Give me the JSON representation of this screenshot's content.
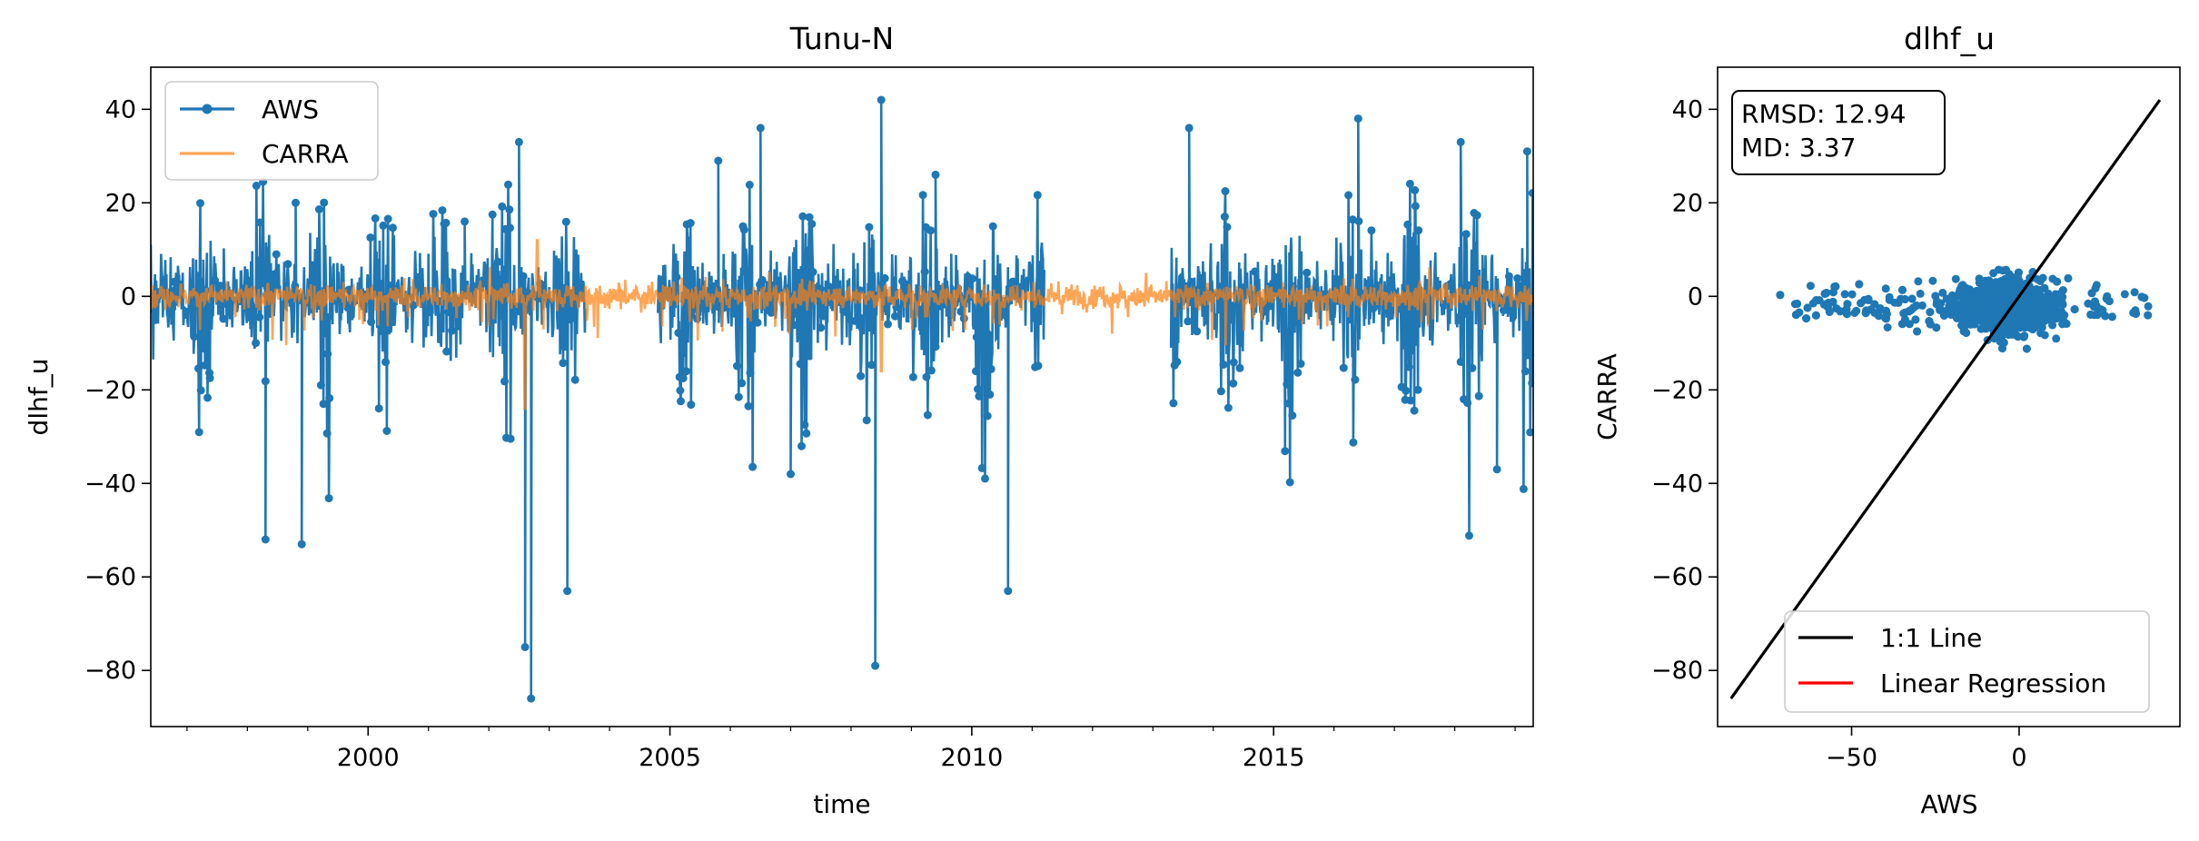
{
  "chart_data": [
    {
      "type": "line",
      "title": "Tunu-N",
      "xlabel": "time",
      "ylabel": "dlhf_u",
      "xlim": [
        1996.4,
        2019.3
      ],
      "ylim": [
        -92,
        49
      ],
      "x_ticks": [
        2000,
        2005,
        2010,
        2015
      ],
      "y_ticks": [
        -80,
        -60,
        -40,
        -20,
        0,
        20,
        40
      ],
      "grid": false,
      "legend_placement": "top-left",
      "series": [
        {
          "name": "AWS",
          "color": "#1f77b4",
          "marker": "circle",
          "segments": [
            [
              1996.4,
              2001.4
            ],
            [
              2001.4,
              2003.6
            ],
            [
              2004.8,
              2011.2
            ],
            [
              2013.3,
              2019.3
            ]
          ],
          "peaks": [
            {
              "x": 1998.3,
              "y": -52
            },
            {
              "x": 1998.8,
              "y": 20
            },
            {
              "x": 1998.9,
              "y": -53
            },
            {
              "x": 2001.6,
              "y": 16
            },
            {
              "x": 2002.5,
              "y": 33
            },
            {
              "x": 2002.7,
              "y": -86
            },
            {
              "x": 2002.6,
              "y": -75
            },
            {
              "x": 2003.3,
              "y": -63
            },
            {
              "x": 2005.8,
              "y": 29
            },
            {
              "x": 2006.5,
              "y": 36
            },
            {
              "x": 2007.0,
              "y": -38
            },
            {
              "x": 2008.5,
              "y": 42
            },
            {
              "x": 2008.4,
              "y": -79
            },
            {
              "x": 2009.4,
              "y": 26
            },
            {
              "x": 2010.6,
              "y": -63
            },
            {
              "x": 2013.6,
              "y": 36
            },
            {
              "x": 2016.4,
              "y": 38
            },
            {
              "x": 2018.1,
              "y": 33
            },
            {
              "x": 2018.7,
              "y": -37
            },
            {
              "x": 2019.2,
              "y": 31
            }
          ],
          "typical_range": [
            -40,
            12
          ]
        },
        {
          "name": "CARRA",
          "color": "#ff7f0e",
          "opacity": 0.7,
          "x_range": [
            1996.4,
            2019.3
          ],
          "typical_range": [
            -10,
            6
          ],
          "peaks": [
            {
              "x": 2002.6,
              "y": -24
            },
            {
              "x": 2002.8,
              "y": 12
            },
            {
              "x": 2008.5,
              "y": -16
            }
          ]
        }
      ]
    },
    {
      "type": "scatter",
      "title": "dlhf_u",
      "xlabel": "AWS",
      "ylabel": "CARRA",
      "xlim": [
        -90,
        48
      ],
      "ylim": [
        -92,
        49
      ],
      "x_ticks": [
        -50,
        0
      ],
      "y_ticks": [
        -80,
        -60,
        -40,
        -20,
        0,
        20,
        40
      ],
      "grid": false,
      "stats": {
        "rmsd": "RMSD: 12.94",
        "md": "MD: 3.37"
      },
      "legend_placement": "bottom-right",
      "series": [
        {
          "name": "1:1 Line",
          "color": "#000000",
          "kind": "line",
          "points": [
            [
              -86,
              -86
            ],
            [
              42,
              42
            ]
          ]
        },
        {
          "name": "Linear Regression",
          "color": "#ff0000",
          "kind": "line",
          "points": []
        },
        {
          "name": "",
          "color": "#1f77b4",
          "kind": "scatter",
          "x_range": [
            -86,
            42
          ],
          "y_range": [
            -15,
            7
          ]
        }
      ]
    }
  ]
}
